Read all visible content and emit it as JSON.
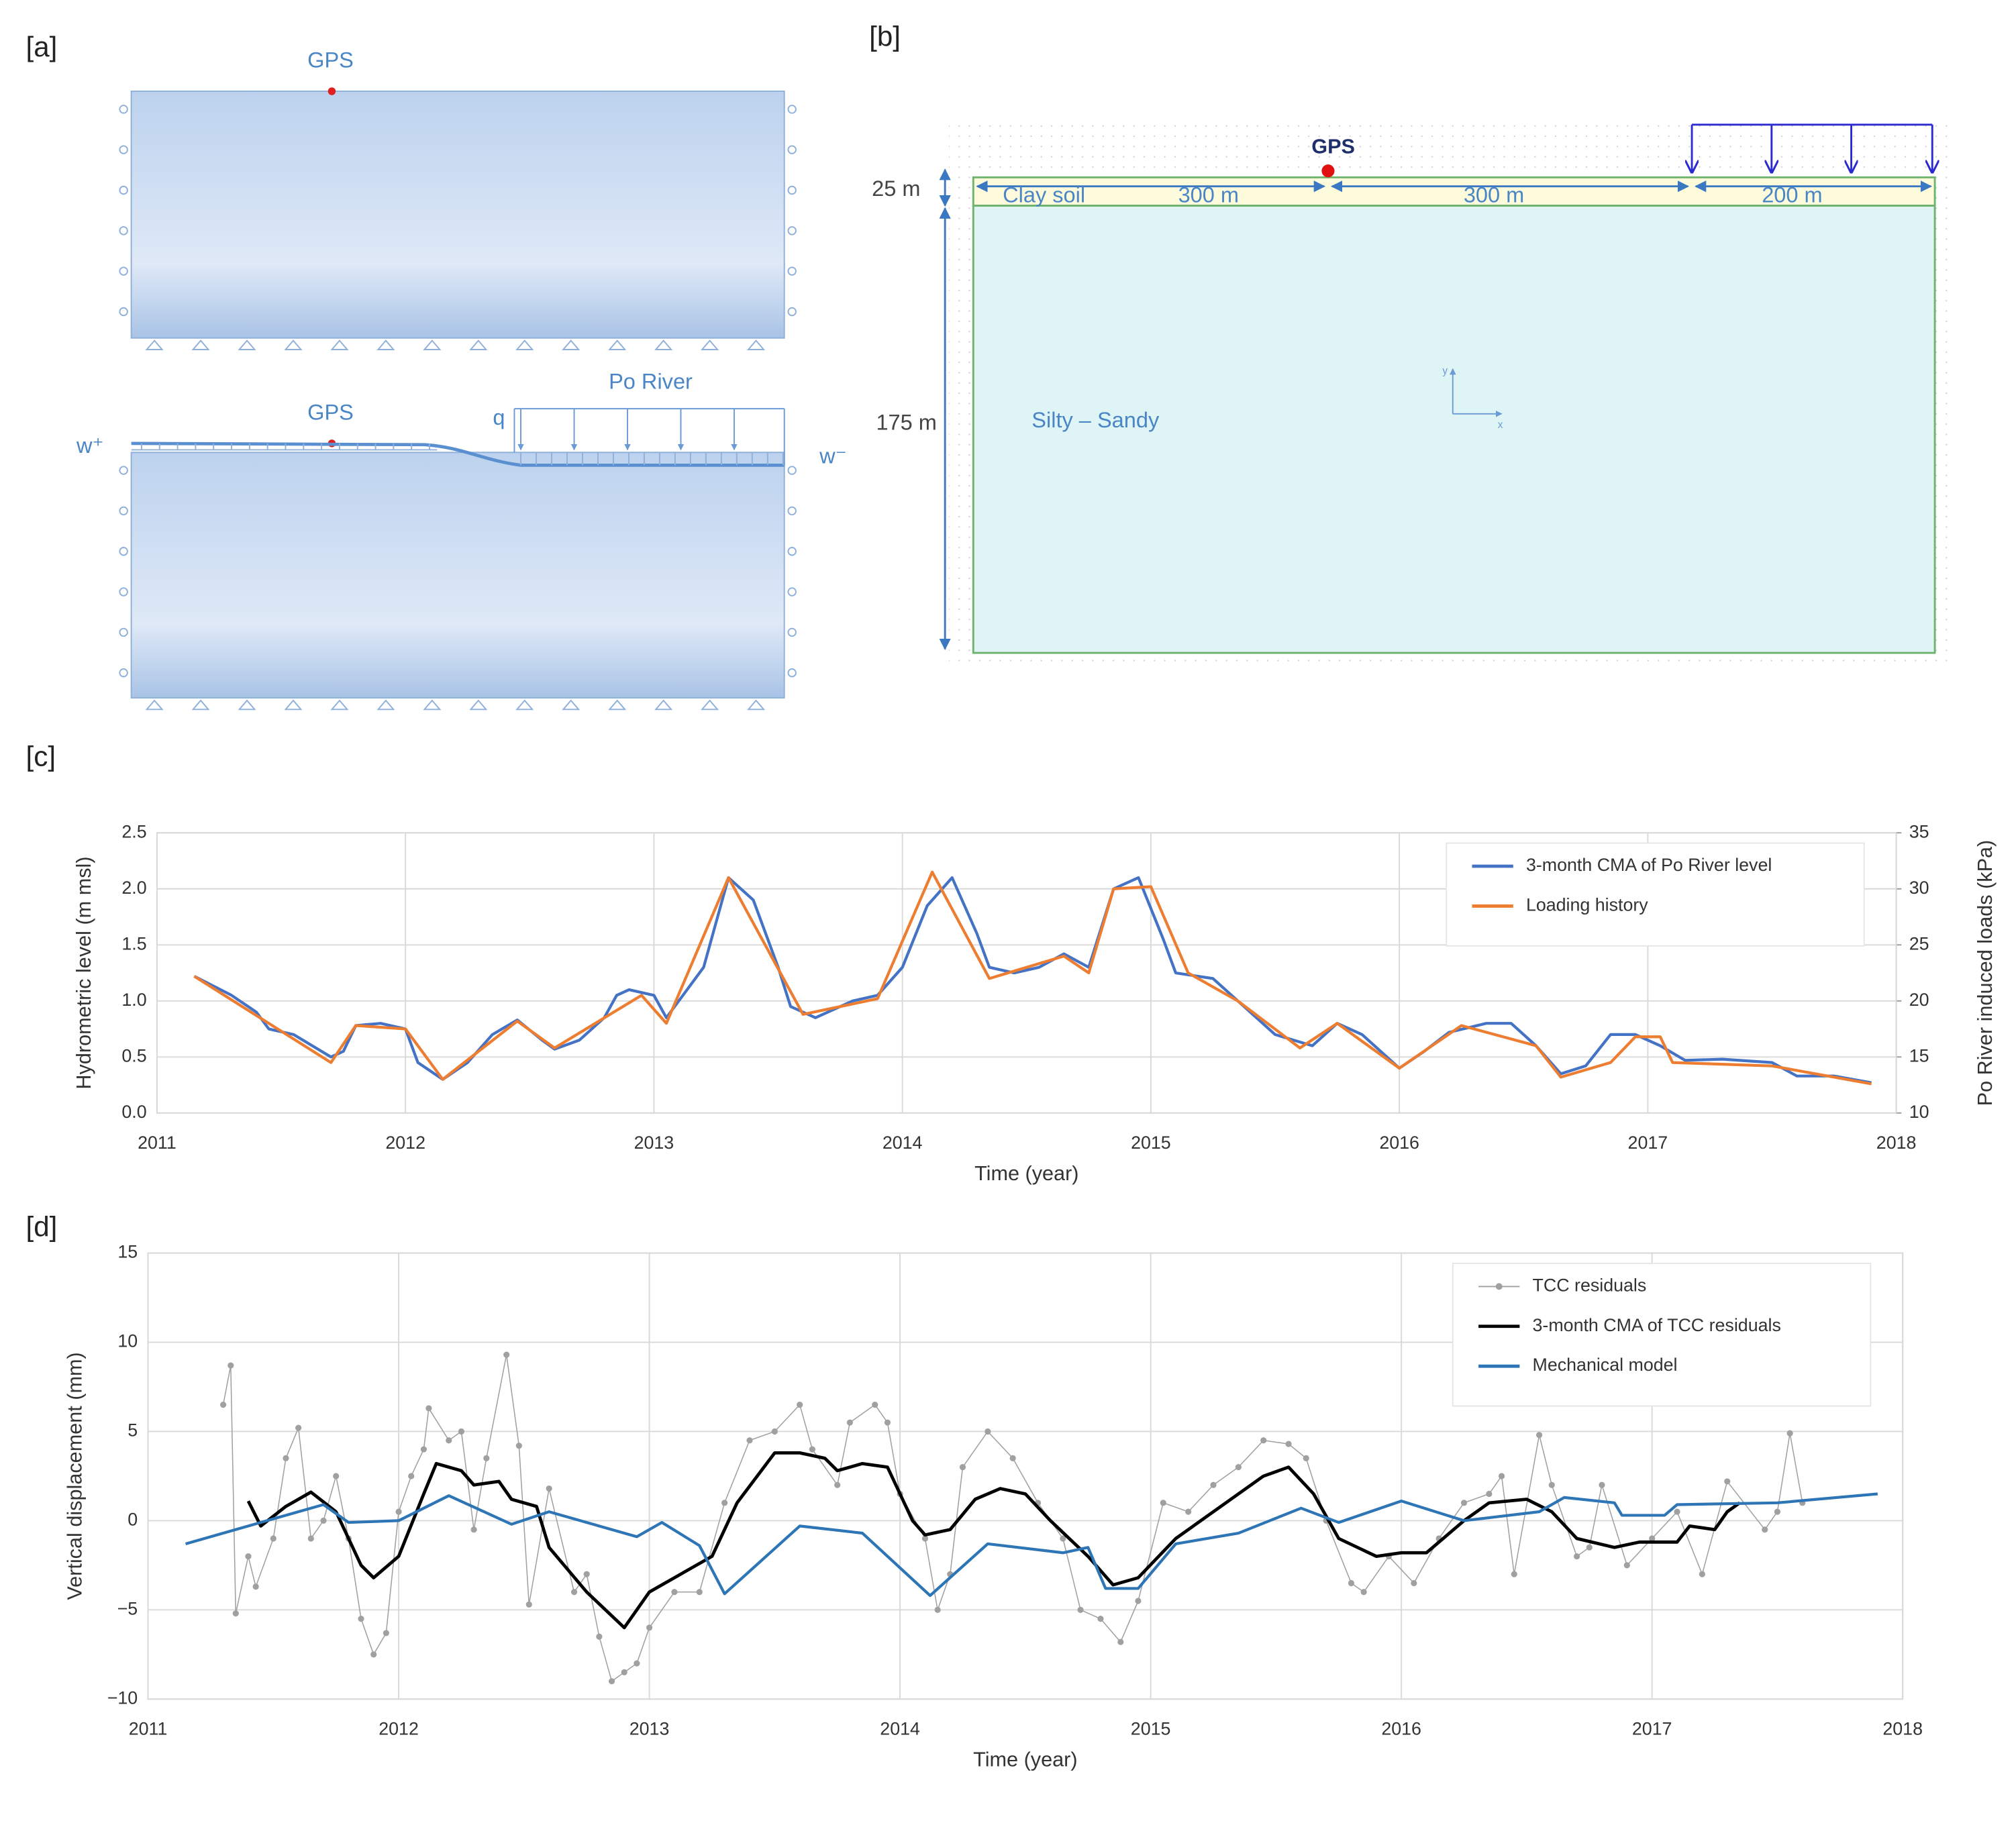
{
  "panel_labels": [
    "[a]",
    "[b]",
    "[c]",
    "[d]"
  ],
  "diagram_a": {
    "gps_labels": [
      "GPS",
      "GPS"
    ],
    "river_label": "Po River",
    "load_label": "q",
    "water_plus": "w⁺",
    "water_minus": "w⁻"
  },
  "diagram_b": {
    "gps_label": "GPS",
    "layer_depths": [
      "25 m",
      "175 m"
    ],
    "top_layer": "Clay soil",
    "spans": [
      "300 m",
      "300 m",
      "200 m"
    ],
    "bottom_layer": "Silty – Sandy",
    "axis_labels": [
      "y",
      "x"
    ]
  },
  "chart_data": [
    {
      "type": "line",
      "xlabel": "Time (year)",
      "ylabel": "Hydrometric level (m msl)",
      "y2label": "Po River induced loads (kPa)",
      "xlim": [
        2011,
        2018
      ],
      "xticks": [
        2011,
        2012,
        2013,
        2014,
        2015,
        2016,
        2017,
        2018
      ],
      "ylim": [
        0,
        2.5
      ],
      "yticks": [
        {
          "value": 0,
          "label": "0.0"
        },
        0.5,
        {
          "value": 1,
          "label": "1.0"
        },
        1.5,
        {
          "value": 2,
          "label": "2.0"
        },
        2.5
      ],
      "y2lim": [
        10,
        35
      ],
      "y2ticks": [
        10,
        15,
        20,
        25,
        30,
        35
      ],
      "grid": true,
      "legend": "upper right",
      "series": [
        {
          "name": "3-month CMA of Po River level",
          "color": "#4472c4",
          "x": [
            2011.15,
            2011.3,
            2011.4,
            2011.45,
            2011.55,
            2011.7,
            2011.75,
            2011.8,
            2011.9,
            2012.0,
            2012.05,
            2012.15,
            2012.25,
            2012.35,
            2012.45,
            2012.55,
            2012.6,
            2012.7,
            2012.8,
            2012.85,
            2012.9,
            2013.0,
            2013.05,
            2013.15,
            2013.2,
            2013.3,
            2013.4,
            2013.5,
            2013.55,
            2013.65,
            2013.8,
            2013.9,
            2014.0,
            2014.1,
            2014.2,
            2014.3,
            2014.35,
            2014.45,
            2014.55,
            2014.65,
            2014.75,
            2014.85,
            2014.95,
            2015.05,
            2015.1,
            2015.25,
            2015.35,
            2015.5,
            2015.65,
            2015.75,
            2015.85,
            2016.0,
            2016.1,
            2016.2,
            2016.35,
            2016.45,
            2016.55,
            2016.65,
            2016.75,
            2016.85,
            2016.95,
            2017.05,
            2017.15,
            2017.3,
            2017.5,
            2017.6,
            2017.75,
            2017.9
          ],
          "values": [
            1.22,
            1.05,
            0.9,
            0.75,
            0.7,
            0.5,
            0.55,
            0.78,
            0.8,
            0.75,
            0.45,
            0.3,
            0.45,
            0.7,
            0.83,
            0.65,
            0.57,
            0.65,
            0.85,
            1.05,
            1.1,
            1.05,
            0.85,
            1.15,
            1.3,
            2.1,
            1.9,
            1.3,
            0.95,
            0.85,
            1.0,
            1.05,
            1.3,
            1.85,
            2.1,
            1.6,
            1.3,
            1.25,
            1.3,
            1.42,
            1.3,
            2.0,
            2.1,
            1.55,
            1.25,
            1.2,
            1.0,
            0.7,
            0.6,
            0.8,
            0.7,
            0.4,
            0.55,
            0.72,
            0.8,
            0.8,
            0.6,
            0.35,
            0.42,
            0.7,
            0.7,
            0.6,
            0.47,
            0.48,
            0.45,
            0.33,
            0.33,
            0.27
          ]
        },
        {
          "name": "Loading history",
          "color": "#ed7d31",
          "axis": "y2",
          "x": [
            2011.15,
            2011.7,
            2011.8,
            2012.0,
            2012.15,
            2012.45,
            2012.6,
            2012.95,
            2013.05,
            2013.3,
            2013.6,
            2013.9,
            2014.12,
            2014.35,
            2014.65,
            2014.75,
            2014.85,
            2015.0,
            2015.15,
            2015.35,
            2015.6,
            2015.75,
            2016.0,
            2016.25,
            2016.55,
            2016.65,
            2016.85,
            2016.95,
            2017.05,
            2017.1,
            2017.5,
            2017.9
          ],
          "values": [
            22.2,
            14.5,
            17.8,
            17.5,
            13.0,
            18.2,
            15.8,
            20.5,
            18.0,
            31.0,
            18.8,
            20.2,
            31.5,
            22.0,
            24.0,
            22.5,
            30.0,
            30.2,
            22.5,
            20.0,
            15.8,
            18.0,
            14.0,
            17.8,
            16.0,
            13.2,
            14.5,
            16.8,
            16.8,
            14.5,
            14.2,
            12.6
          ]
        }
      ]
    },
    {
      "type": "line",
      "xlabel": "Time (year)",
      "ylabel": "Vertical displacement (mm)",
      "xlim": [
        2011,
        2018
      ],
      "xticks": [
        2011,
        2012,
        2013,
        2014,
        2015,
        2016,
        2017,
        2018
      ],
      "ylim": [
        -10,
        15
      ],
      "yticks": [
        {
          "value": -10,
          "label": "−10"
        },
        {
          "value": -5,
          "label": "−5"
        },
        0,
        5,
        10,
        15
      ],
      "grid": true,
      "legend": "upper right",
      "series": [
        {
          "name": "TCC residuals",
          "color": "#a0a0a0",
          "marker": true,
          "x": [
            2011.3,
            2011.33,
            2011.35,
            2011.4,
            2011.43,
            2011.5,
            2011.55,
            2011.6,
            2011.65,
            2011.7,
            2011.75,
            2011.8,
            2011.85,
            2011.9,
            2011.95,
            2012.0,
            2012.05,
            2012.1,
            2012.12,
            2012.2,
            2012.25,
            2012.3,
            2012.35,
            2012.43,
            2012.48,
            2012.52,
            2012.6,
            2012.7,
            2012.75,
            2012.8,
            2012.85,
            2012.9,
            2012.95,
            2013.0,
            2013.1,
            2013.2,
            2013.3,
            2013.4,
            2013.5,
            2013.6,
            2013.65,
            2013.75,
            2013.8,
            2013.9,
            2013.95,
            2014.0,
            2014.1,
            2014.15,
            2014.2,
            2014.25,
            2014.35,
            2014.45,
            2014.55,
            2014.65,
            2014.72,
            2014.8,
            2014.88,
            2014.95,
            2015.05,
            2015.15,
            2015.25,
            2015.35,
            2015.45,
            2015.55,
            2015.62,
            2015.7,
            2015.8,
            2015.85,
            2015.95,
            2016.05,
            2016.15,
            2016.25,
            2016.35,
            2016.4,
            2016.45,
            2016.55,
            2016.6,
            2016.7,
            2016.75,
            2016.8,
            2016.9,
            2017.0,
            2017.1,
            2017.2,
            2017.3,
            2017.45,
            2017.5,
            2017.55,
            2017.6
          ],
          "values": [
            6.5,
            8.7,
            -5.2,
            -2.0,
            -3.7,
            -1.0,
            3.5,
            5.2,
            -1.0,
            0.0,
            2.5,
            -1.0,
            -5.5,
            -7.5,
            -6.3,
            0.5,
            2.5,
            4.0,
            6.3,
            4.5,
            5.0,
            -0.5,
            3.5,
            9.3,
            4.2,
            -4.7,
            1.8,
            -4.0,
            -3.0,
            -6.5,
            -9.0,
            -8.5,
            -8.0,
            -6.0,
            -4.0,
            -4.0,
            1.0,
            4.5,
            5.0,
            6.5,
            4.0,
            2.0,
            5.5,
            6.5,
            5.5,
            1.5,
            -1.0,
            -5.0,
            -3.0,
            3.0,
            5.0,
            3.5,
            1.0,
            -1.0,
            -5.0,
            -5.5,
            -6.8,
            -4.5,
            1.0,
            0.5,
            2.0,
            3.0,
            4.5,
            4.3,
            3.5,
            0.0,
            -3.5,
            -4.0,
            -2.0,
            -3.5,
            -1.0,
            1.0,
            1.5,
            2.5,
            -3.0,
            4.8,
            2.0,
            -2.0,
            -1.5,
            2.0,
            -2.5,
            -1.0,
            0.5,
            -3.0,
            2.2,
            -0.5,
            0.5,
            4.9,
            1.0
          ]
        },
        {
          "name": "3-month CMA of TCC residuals",
          "color": "#000000",
          "x": [
            2011.4,
            2011.45,
            2011.55,
            2011.65,
            2011.75,
            2011.85,
            2011.9,
            2012.0,
            2012.1,
            2012.15,
            2012.25,
            2012.3,
            2012.4,
            2012.45,
            2012.55,
            2012.6,
            2012.75,
            2012.9,
            2013.0,
            2013.15,
            2013.25,
            2013.35,
            2013.5,
            2013.6,
            2013.7,
            2013.75,
            2013.85,
            2013.95,
            2014.05,
            2014.1,
            2014.2,
            2014.3,
            2014.4,
            2014.5,
            2014.6,
            2014.75,
            2014.85,
            2014.95,
            2015.1,
            2015.3,
            2015.45,
            2015.55,
            2015.65,
            2015.75,
            2015.9,
            2016.0,
            2016.1,
            2016.25,
            2016.35,
            2016.5,
            2016.6,
            2016.7,
            2016.85,
            2016.95,
            2017.1,
            2017.15,
            2017.25,
            2017.3,
            2017.35
          ],
          "values": [
            1.1,
            -0.3,
            0.8,
            1.6,
            0.5,
            -2.5,
            -3.2,
            -2.0,
            1.5,
            3.2,
            2.8,
            2.0,
            2.2,
            1.2,
            0.8,
            -1.5,
            -4.0,
            -6.0,
            -4.0,
            -2.8,
            -2.0,
            1.0,
            3.8,
            3.8,
            3.5,
            2.8,
            3.2,
            3.0,
            0.0,
            -0.8,
            -0.5,
            1.2,
            1.8,
            1.5,
            0.0,
            -2.0,
            -3.6,
            -3.2,
            -1.0,
            1.0,
            2.5,
            3.0,
            1.5,
            -1.0,
            -2.0,
            -1.8,
            -1.8,
            0.0,
            1.0,
            1.2,
            0.5,
            -1.0,
            -1.5,
            -1.2,
            -1.2,
            -0.3,
            -0.5,
            0.5,
            1.0
          ]
        },
        {
          "name": "Mechanical model",
          "color": "#2e75b6",
          "x": [
            2011.15,
            2011.7,
            2011.8,
            2012.0,
            2012.2,
            2012.45,
            2012.6,
            2012.95,
            2013.05,
            2013.2,
            2013.3,
            2013.6,
            2013.85,
            2014.12,
            2014.35,
            2014.65,
            2014.75,
            2014.82,
            2014.95,
            2015.1,
            2015.35,
            2015.6,
            2015.75,
            2016.0,
            2016.25,
            2016.55,
            2016.65,
            2016.85,
            2016.88,
            2017.05,
            2017.1,
            2017.5,
            2017.9
          ],
          "values": [
            -1.3,
            0.9,
            -0.1,
            0.0,
            1.4,
            -0.2,
            0.5,
            -0.9,
            -0.1,
            -1.4,
            -4.1,
            -0.3,
            -0.7,
            -4.2,
            -1.3,
            -1.8,
            -1.5,
            -3.8,
            -3.8,
            -1.3,
            -0.7,
            0.7,
            -0.1,
            1.1,
            0.0,
            0.5,
            1.3,
            1.0,
            0.3,
            0.3,
            0.9,
            1.0,
            1.5
          ]
        }
      ]
    }
  ]
}
